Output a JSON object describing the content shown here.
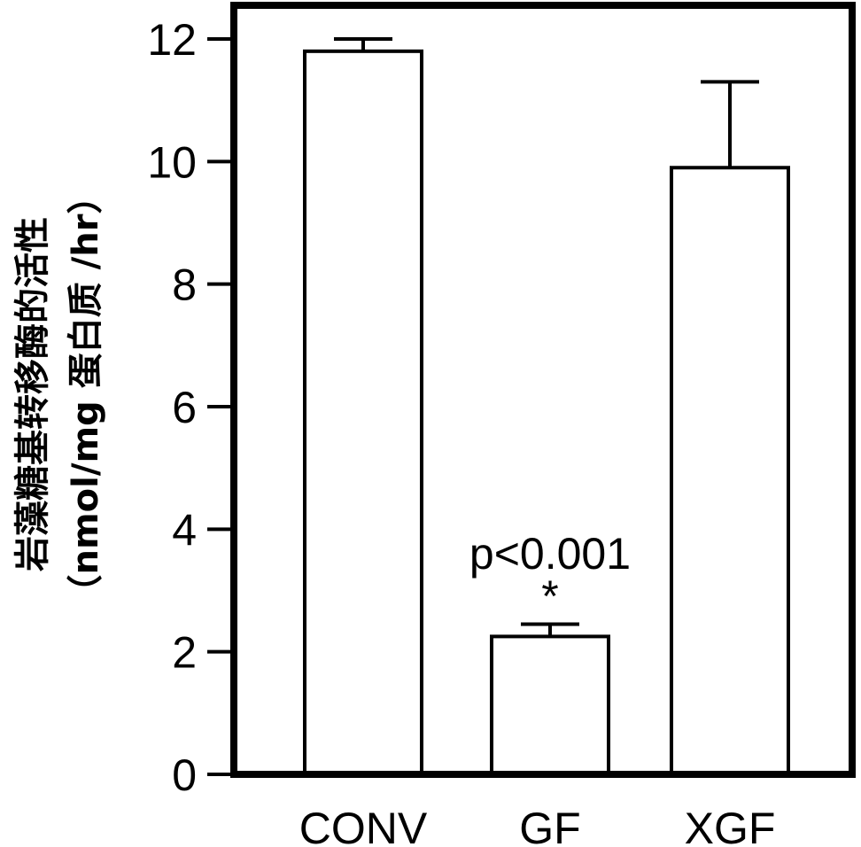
{
  "chart_data": {
    "type": "bar",
    "title": "",
    "categories": [
      "CONV",
      "GF",
      "XGF"
    ],
    "values": [
      11.8,
      2.25,
      9.9
    ],
    "errors": [
      0.2,
      0.2,
      1.4
    ],
    "ylabel_line1": "岩藻糖基转移酶的活性",
    "ylabel_line2": "（nmol/mg 蛋白质 /hr）",
    "xlabel": "",
    "ylim": [
      0,
      12
    ],
    "yticks": [
      "0",
      "2",
      "4",
      "6",
      "8",
      "10",
      "12"
    ],
    "grid": false,
    "annotations": [
      {
        "category": "GF",
        "text": "p<0.001"
      },
      {
        "category": "GF",
        "text": "*"
      }
    ],
    "colors": {
      "bar_fill": "#ffffff",
      "bar_stroke": "#000000",
      "axis": "#000000"
    }
  }
}
